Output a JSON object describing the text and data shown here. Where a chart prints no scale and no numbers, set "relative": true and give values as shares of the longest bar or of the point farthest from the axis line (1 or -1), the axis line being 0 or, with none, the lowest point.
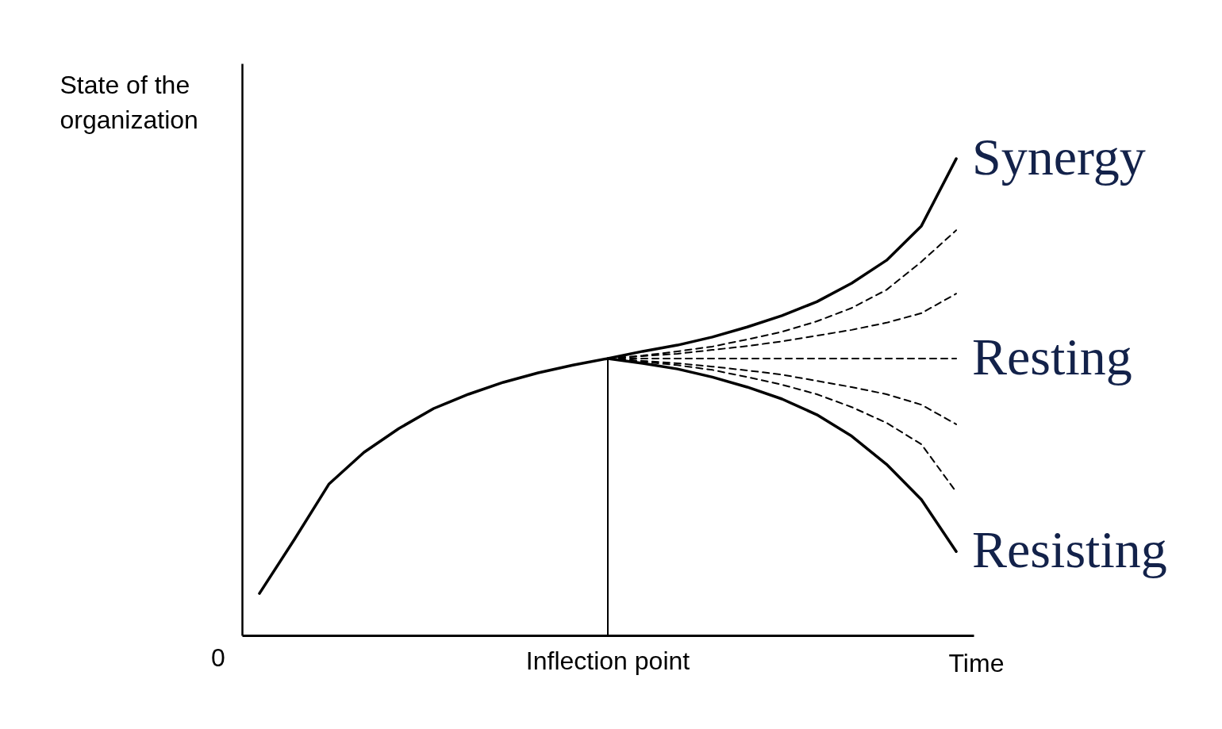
{
  "chart_data": {
    "type": "line",
    "relative": true,
    "xlabel": "Time",
    "ylabel": "State of the organization",
    "legend": false,
    "categories": [
      null,
      null,
      null,
      null,
      null,
      null,
      null,
      null,
      null,
      null,
      null,
      null,
      null,
      null,
      null,
      null,
      null,
      null,
      null,
      null,
      null
    ],
    "annotations": [
      "0"
    ],
    "ref_lines": [
      {
        "axis": "x",
        "label": "Inflection point"
      }
    ],
    "series": [
      {
        "name": "Synergy",
        "color": "#000000",
        "line_style": "solid",
        "values": [
          0.088,
          0.201,
          0.318,
          0.384,
          0.434,
          0.476,
          0.506,
          0.531,
          0.551,
          0.567,
          0.581,
          0.596,
          0.609,
          0.626,
          0.647,
          0.671,
          0.7,
          0.739,
          0.787,
          0.859,
          1
        ]
      },
      {
        "color": "#000000",
        "line_style": "dashed",
        "values": [
          null,
          null,
          null,
          null,
          null,
          null,
          null,
          null,
          null,
          null,
          0.581,
          0.587,
          0.596,
          0.606,
          0.621,
          0.637,
          0.659,
          0.687,
          0.725,
          0.784,
          0.85
        ]
      },
      {
        "color": "#000000",
        "line_style": "dashed",
        "values": [
          null,
          null,
          null,
          null,
          null,
          null,
          null,
          null,
          null,
          null,
          0.581,
          0.586,
          0.591,
          0.599,
          0.607,
          0.617,
          0.629,
          0.641,
          0.656,
          0.676,
          0.717
        ]
      },
      {
        "name": "Resting",
        "color": "#000000",
        "line_style": "dashed",
        "values": [
          null,
          null,
          null,
          null,
          null,
          null,
          null,
          null,
          null,
          null,
          0.581,
          0.581,
          0.581,
          0.581,
          0.581,
          0.581,
          0.581,
          0.581,
          0.581,
          0.581,
          0.581
        ]
      },
      {
        "color": "#000000",
        "line_style": "dashed",
        "values": [
          null,
          null,
          null,
          null,
          null,
          null,
          null,
          null,
          null,
          null,
          0.581,
          0.576,
          0.571,
          0.564,
          0.556,
          0.547,
          0.534,
          0.521,
          0.506,
          0.484,
          0.443
        ]
      },
      {
        "color": "#000000",
        "line_style": "dashed",
        "values": [
          null,
          null,
          null,
          null,
          null,
          null,
          null,
          null,
          null,
          null,
          0.581,
          0.574,
          0.567,
          0.557,
          0.542,
          0.526,
          0.506,
          0.479,
          0.446,
          0.401,
          0.301
        ]
      },
      {
        "name": "Resisting",
        "color": "#000000",
        "line_style": "solid",
        "values": [
          null,
          null,
          null,
          null,
          null,
          null,
          null,
          null,
          null,
          null,
          0.581,
          0.571,
          0.559,
          0.542,
          0.521,
          0.496,
          0.463,
          0.418,
          0.359,
          0.285,
          0.176
        ]
      }
    ]
  }
}
